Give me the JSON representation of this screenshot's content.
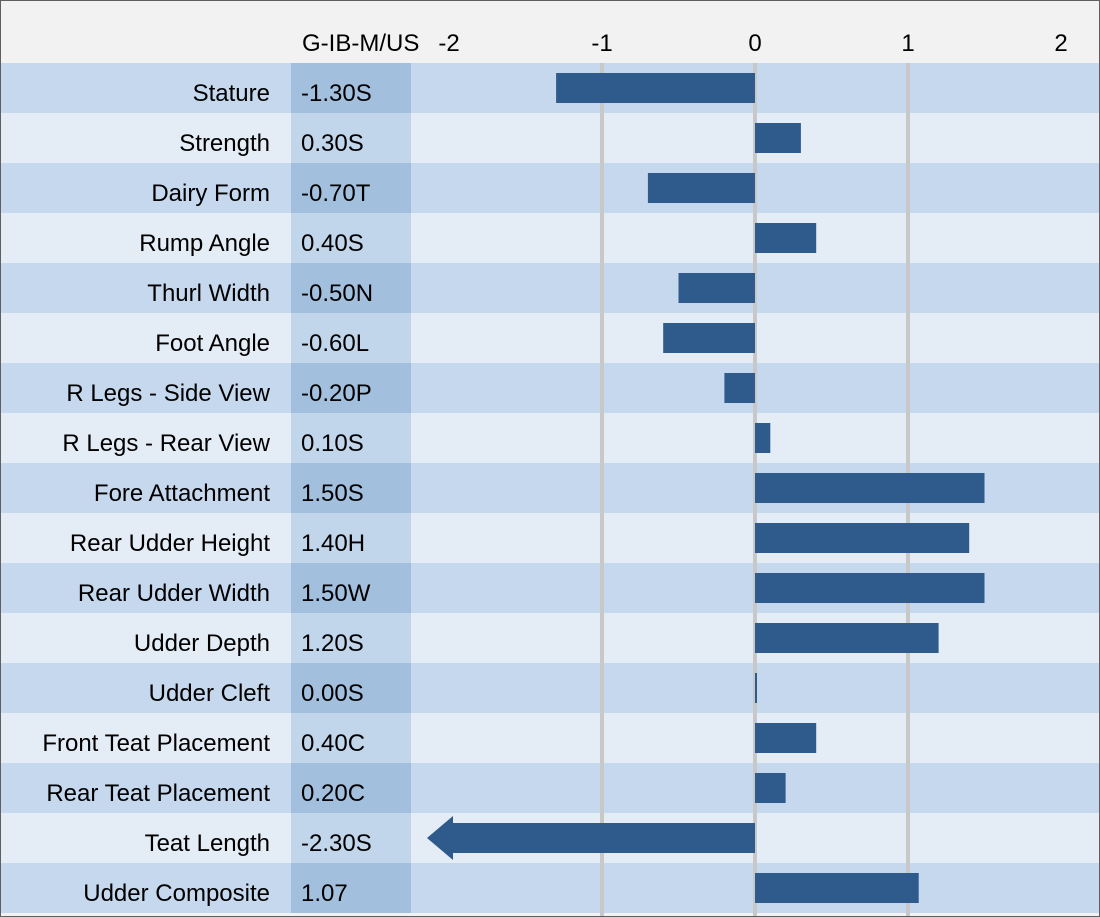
{
  "chart_data": {
    "type": "bar",
    "column_header": "G-IB-M/US",
    "x_ticks": [
      "-2",
      "-1",
      "0",
      "1",
      "2"
    ],
    "xlim": [
      -2,
      2
    ],
    "grid": true,
    "categories": [
      "Stature",
      "Strength",
      "Dairy Form",
      "Rump Angle",
      "Thurl Width",
      "Foot Angle",
      "R Legs - Side View",
      "R Legs - Rear View",
      "Fore Attachment",
      "Rear Udder Height",
      "Rear Udder Width",
      "Udder Depth",
      "Udder Cleft",
      "Front Teat Placement",
      "Rear Teat Placement",
      "Teat Length",
      "Udder Composite"
    ],
    "value_labels": [
      "-1.30S",
      "0.30S",
      "-0.70T",
      "0.40S",
      "-0.50N",
      "-0.60L",
      "-0.20P",
      "0.10S",
      "1.50S",
      "1.40H",
      "1.50W",
      "1.20S",
      "0.00S",
      "0.40C",
      "0.20C",
      "-2.30S",
      "1.07"
    ],
    "values": [
      -1.3,
      0.3,
      -0.7,
      0.4,
      -0.5,
      -0.6,
      -0.2,
      0.1,
      1.5,
      1.4,
      1.5,
      1.2,
      0.0,
      0.4,
      0.2,
      -2.3,
      1.07
    ],
    "colors": {
      "bar": "#2f5a8c",
      "row_dark": "#c5d8ee",
      "row_light": "#e4ecf6",
      "value_col_dark": "#a2bfde",
      "value_col_light": "#c1d5eb",
      "header_bg": "#f2f2f2",
      "grid": "#c8c8c8"
    }
  }
}
